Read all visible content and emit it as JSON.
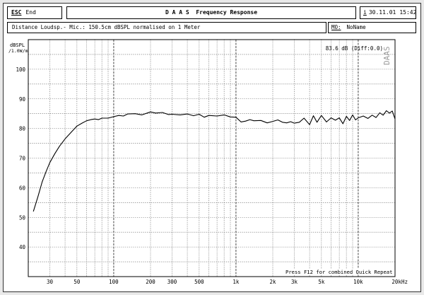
{
  "toolbar": {
    "esc_key": "ESC",
    "end_label": "End"
  },
  "title": "D A A S  Frequency Response",
  "date_time": {
    "icon": "i",
    "date": "30.11.01",
    "time": "15:42"
  },
  "info": {
    "text": "Distance Loudsp.- Mic.: 150.5cm dBSPL normalised on 1 Meter",
    "mo_label": "MO:",
    "mo_value": "NoName"
  },
  "chart_data": {
    "type": "line",
    "title": "",
    "ylabel": "dBSPL /1.0W/m",
    "xlabel": "Hz",
    "xscale": "log",
    "xlim": [
      20,
      20000
    ],
    "ylim": [
      30,
      110
    ],
    "yticks": [
      40,
      50,
      60,
      70,
      80,
      90,
      100
    ],
    "xticks": [
      {
        "v": 30,
        "label": "30"
      },
      {
        "v": 50,
        "label": "50"
      },
      {
        "v": 100,
        "label": "100"
      },
      {
        "v": 200,
        "label": "200"
      },
      {
        "v": 300,
        "label": "300"
      },
      {
        "v": 500,
        "label": "500"
      },
      {
        "v": 1000,
        "label": "1k"
      },
      {
        "v": 2000,
        "label": "2k"
      },
      {
        "v": 3000,
        "label": "3k"
      },
      {
        "v": 5000,
        "label": "5k"
      },
      {
        "v": 10000,
        "label": "10k"
      },
      {
        "v": 20000,
        "label": "20kHz"
      }
    ],
    "grid": true,
    "readout": "83.6 dB (Diff:0.0)",
    "watermark": "DAAS",
    "footer": "Press F12 for combined Quick Repeat",
    "series": [
      {
        "x": [
          22,
          24,
          26,
          28,
          30,
          33,
          36,
          40,
          45,
          50,
          55,
          60,
          65,
          70,
          75,
          80,
          90,
          100,
          110,
          120,
          130,
          150,
          170,
          200,
          220,
          250,
          280,
          300,
          350,
          400,
          450,
          500,
          550,
          600,
          700,
          800,
          900,
          1000,
          1100,
          1200,
          1300,
          1400,
          1600,
          1800,
          2000,
          2200,
          2400,
          2600,
          2800,
          3000,
          3300,
          3600,
          4000,
          4300,
          4600,
          5000,
          5500,
          6000,
          6500,
          7000,
          7500,
          8000,
          8500,
          9000,
          9500,
          10000,
          11000,
          12000,
          13000,
          14000,
          15000,
          16000,
          17000,
          18000,
          19000,
          20000
        ],
        "y": [
          52,
          57,
          62,
          65.5,
          68.5,
          71.5,
          74,
          76.5,
          78.8,
          80.8,
          81.8,
          82.6,
          83,
          83.2,
          83,
          83.5,
          83.5,
          84,
          84.4,
          84.2,
          84.9,
          85,
          84.6,
          85.6,
          85.2,
          85.4,
          84.7,
          84.8,
          84.6,
          84.9,
          84.3,
          84.8,
          83.8,
          84.4,
          84.2,
          84.6,
          83.9,
          83.8,
          82.2,
          82.5,
          83,
          82.6,
          82.7,
          81.9,
          82.4,
          82.9,
          82.1,
          81.9,
          82.3,
          81.8,
          82.1,
          83.5,
          81.3,
          84.3,
          82.1,
          84.4,
          82.2,
          83.6,
          82.8,
          83.6,
          81.6,
          84.1,
          82.7,
          84.6,
          82.9,
          83.6,
          84.2,
          83.4,
          84.5,
          83.7,
          85.3,
          84.5,
          86,
          85.2,
          85.9,
          83.2
        ]
      }
    ]
  }
}
